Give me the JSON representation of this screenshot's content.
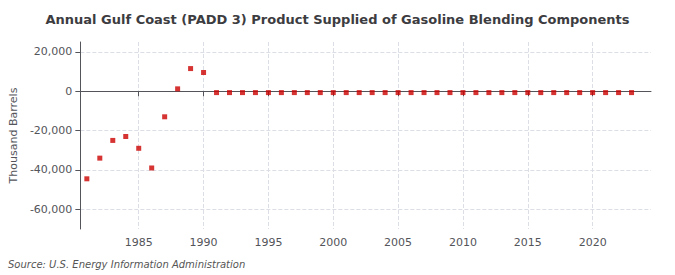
{
  "chart_data": {
    "type": "scatter",
    "title": "Annual Gulf Coast (PADD 3) Product Supplied of Gasoline Blending Components",
    "ylabel": "Thousand Barrels",
    "source": "Source: U.S. Energy Information Administration",
    "color": "#cc0000",
    "marker": "square",
    "grid": true,
    "xlim": [
      1980.5,
      2024.5
    ],
    "xticks": [
      1985,
      1990,
      1995,
      2000,
      2005,
      2010,
      2015,
      2020
    ],
    "ylim": [
      -70000,
      25000
    ],
    "yticks": [
      {
        "value": -60000,
        "label": "-60,000"
      },
      {
        "value": -40000,
        "label": "-40,000"
      },
      {
        "value": -20000,
        "label": "-20,000"
      },
      0,
      {
        "value": 20000,
        "label": "20,000"
      }
    ],
    "x": [
      1981,
      1982,
      1983,
      1984,
      1985,
      1986,
      1987,
      1988,
      1989,
      1990,
      1991,
      1992,
      1993,
      1994,
      1995,
      1996,
      1997,
      1998,
      1999,
      2000,
      2001,
      2002,
      2003,
      2004,
      2005,
      2006,
      2007,
      2008,
      2009,
      2010,
      2011,
      2012,
      2013,
      2014,
      2015,
      2016,
      2017,
      2018,
      2019,
      2020,
      2021,
      2022,
      2023
    ],
    "values": [
      -44500,
      -34000,
      -25000,
      -23000,
      -29000,
      -39000,
      -13000,
      1200,
      11500,
      9500,
      -700,
      -700,
      -700,
      -700,
      -700,
      -700,
      -700,
      -700,
      -700,
      -700,
      -700,
      -700,
      -700,
      -700,
      -700,
      -700,
      -700,
      -700,
      -700,
      -700,
      -700,
      -700,
      -700,
      -700,
      -700,
      -700,
      -700,
      -700,
      -700,
      -700,
      -700,
      -700,
      -700
    ]
  }
}
